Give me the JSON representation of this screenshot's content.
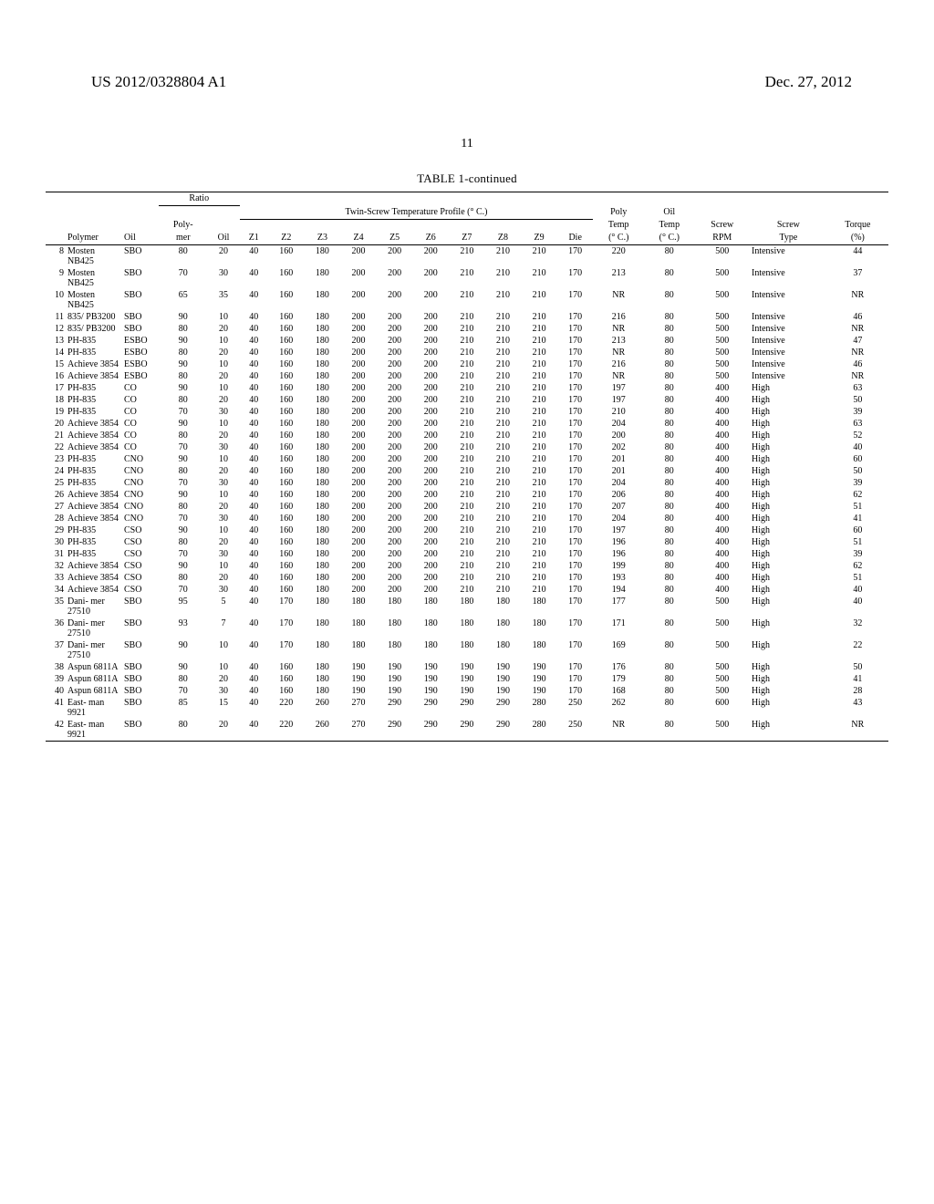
{
  "header": {
    "pub_number": "US 2012/0328804 A1",
    "pub_date": "Dec. 27, 2012",
    "page_number": "11"
  },
  "table": {
    "caption": "TABLE 1-continued",
    "groups": {
      "ratio": "Ratio",
      "temp_profile": "Twin-Screw Temperature Profile (° C.)"
    },
    "columns": [
      "",
      "Polymer",
      "Oil",
      "Poly-\nmer",
      "Oil",
      "Z1",
      "Z2",
      "Z3",
      "Z4",
      "Z5",
      "Z6",
      "Z7",
      "Z8",
      "Z9",
      "Die",
      "Poly\nTemp\n(° C.)",
      "Oil\nTemp\n(° C.)",
      "Screw\nRPM",
      "Screw\nType",
      "Torque\n(%)"
    ],
    "rows": [
      [
        "8",
        "Mosten NB425",
        "SBO",
        "80",
        "20",
        "40",
        "160",
        "180",
        "200",
        "200",
        "200",
        "210",
        "210",
        "210",
        "170",
        "220",
        "80",
        "500",
        "Intensive",
        "44"
      ],
      [
        "9",
        "Mosten NB425",
        "SBO",
        "70",
        "30",
        "40",
        "160",
        "180",
        "200",
        "200",
        "200",
        "210",
        "210",
        "210",
        "170",
        "213",
        "80",
        "500",
        "Intensive",
        "37"
      ],
      [
        "10",
        "Mosten NB425",
        "SBO",
        "65",
        "35",
        "40",
        "160",
        "180",
        "200",
        "200",
        "200",
        "210",
        "210",
        "210",
        "170",
        "NR",
        "80",
        "500",
        "Intensive",
        "NR"
      ],
      [
        "11",
        "835/ PB3200",
        "SBO",
        "90",
        "10",
        "40",
        "160",
        "180",
        "200",
        "200",
        "200",
        "210",
        "210",
        "210",
        "170",
        "216",
        "80",
        "500",
        "Intensive",
        "46"
      ],
      [
        "12",
        "835/ PB3200",
        "SBO",
        "80",
        "20",
        "40",
        "160",
        "180",
        "200",
        "200",
        "200",
        "210",
        "210",
        "210",
        "170",
        "NR",
        "80",
        "500",
        "Intensive",
        "NR"
      ],
      [
        "13",
        "PH-835",
        "ESBO",
        "90",
        "10",
        "40",
        "160",
        "180",
        "200",
        "200",
        "200",
        "210",
        "210",
        "210",
        "170",
        "213",
        "80",
        "500",
        "Intensive",
        "47"
      ],
      [
        "14",
        "PH-835",
        "ESBO",
        "80",
        "20",
        "40",
        "160",
        "180",
        "200",
        "200",
        "200",
        "210",
        "210",
        "210",
        "170",
        "NR",
        "80",
        "500",
        "Intensive",
        "NR"
      ],
      [
        "15",
        "Achieve 3854",
        "ESBO",
        "90",
        "10",
        "40",
        "160",
        "180",
        "200",
        "200",
        "200",
        "210",
        "210",
        "210",
        "170",
        "216",
        "80",
        "500",
        "Intensive",
        "46"
      ],
      [
        "16",
        "Achieve 3854",
        "ESBO",
        "80",
        "20",
        "40",
        "160",
        "180",
        "200",
        "200",
        "200",
        "210",
        "210",
        "210",
        "170",
        "NR",
        "80",
        "500",
        "Intensive",
        "NR"
      ],
      [
        "17",
        "PH-835",
        "CO",
        "90",
        "10",
        "40",
        "160",
        "180",
        "200",
        "200",
        "200",
        "210",
        "210",
        "210",
        "170",
        "197",
        "80",
        "400",
        "High",
        "63"
      ],
      [
        "18",
        "PH-835",
        "CO",
        "80",
        "20",
        "40",
        "160",
        "180",
        "200",
        "200",
        "200",
        "210",
        "210",
        "210",
        "170",
        "197",
        "80",
        "400",
        "High",
        "50"
      ],
      [
        "19",
        "PH-835",
        "CO",
        "70",
        "30",
        "40",
        "160",
        "180",
        "200",
        "200",
        "200",
        "210",
        "210",
        "210",
        "170",
        "210",
        "80",
        "400",
        "High",
        "39"
      ],
      [
        "20",
        "Achieve 3854",
        "CO",
        "90",
        "10",
        "40",
        "160",
        "180",
        "200",
        "200",
        "200",
        "210",
        "210",
        "210",
        "170",
        "204",
        "80",
        "400",
        "High",
        "63"
      ],
      [
        "21",
        "Achieve 3854",
        "CO",
        "80",
        "20",
        "40",
        "160",
        "180",
        "200",
        "200",
        "200",
        "210",
        "210",
        "210",
        "170",
        "200",
        "80",
        "400",
        "High",
        "52"
      ],
      [
        "22",
        "Achieve 3854",
        "CO",
        "70",
        "30",
        "40",
        "160",
        "180",
        "200",
        "200",
        "200",
        "210",
        "210",
        "210",
        "170",
        "202",
        "80",
        "400",
        "High",
        "40"
      ],
      [
        "23",
        "PH-835",
        "CNO",
        "90",
        "10",
        "40",
        "160",
        "180",
        "200",
        "200",
        "200",
        "210",
        "210",
        "210",
        "170",
        "201",
        "80",
        "400",
        "High",
        "60"
      ],
      [
        "24",
        "PH-835",
        "CNO",
        "80",
        "20",
        "40",
        "160",
        "180",
        "200",
        "200",
        "200",
        "210",
        "210",
        "210",
        "170",
        "201",
        "80",
        "400",
        "High",
        "50"
      ],
      [
        "25",
        "PH-835",
        "CNO",
        "70",
        "30",
        "40",
        "160",
        "180",
        "200",
        "200",
        "200",
        "210",
        "210",
        "210",
        "170",
        "204",
        "80",
        "400",
        "High",
        "39"
      ],
      [
        "26",
        "Achieve 3854",
        "CNO",
        "90",
        "10",
        "40",
        "160",
        "180",
        "200",
        "200",
        "200",
        "210",
        "210",
        "210",
        "170",
        "206",
        "80",
        "400",
        "High",
        "62"
      ],
      [
        "27",
        "Achieve 3854",
        "CNO",
        "80",
        "20",
        "40",
        "160",
        "180",
        "200",
        "200",
        "200",
        "210",
        "210",
        "210",
        "170",
        "207",
        "80",
        "400",
        "High",
        "51"
      ],
      [
        "28",
        "Achieve 3854",
        "CNO",
        "70",
        "30",
        "40",
        "160",
        "180",
        "200",
        "200",
        "200",
        "210",
        "210",
        "210",
        "170",
        "204",
        "80",
        "400",
        "High",
        "41"
      ],
      [
        "29",
        "PH-835",
        "CSO",
        "90",
        "10",
        "40",
        "160",
        "180",
        "200",
        "200",
        "200",
        "210",
        "210",
        "210",
        "170",
        "197",
        "80",
        "400",
        "High",
        "60"
      ],
      [
        "30",
        "PH-835",
        "CSO",
        "80",
        "20",
        "40",
        "160",
        "180",
        "200",
        "200",
        "200",
        "210",
        "210",
        "210",
        "170",
        "196",
        "80",
        "400",
        "High",
        "51"
      ],
      [
        "31",
        "PH-835",
        "CSO",
        "70",
        "30",
        "40",
        "160",
        "180",
        "200",
        "200",
        "200",
        "210",
        "210",
        "210",
        "170",
        "196",
        "80",
        "400",
        "High",
        "39"
      ],
      [
        "32",
        "Achieve 3854",
        "CSO",
        "90",
        "10",
        "40",
        "160",
        "180",
        "200",
        "200",
        "200",
        "210",
        "210",
        "210",
        "170",
        "199",
        "80",
        "400",
        "High",
        "62"
      ],
      [
        "33",
        "Achieve 3854",
        "CSO",
        "80",
        "20",
        "40",
        "160",
        "180",
        "200",
        "200",
        "200",
        "210",
        "210",
        "210",
        "170",
        "193",
        "80",
        "400",
        "High",
        "51"
      ],
      [
        "34",
        "Achieve 3854",
        "CSO",
        "70",
        "30",
        "40",
        "160",
        "180",
        "200",
        "200",
        "200",
        "210",
        "210",
        "210",
        "170",
        "194",
        "80",
        "400",
        "High",
        "40"
      ],
      [
        "35",
        "Dani- mer 27510",
        "SBO",
        "95",
        "5",
        "40",
        "170",
        "180",
        "180",
        "180",
        "180",
        "180",
        "180",
        "180",
        "170",
        "177",
        "80",
        "500",
        "High",
        "40"
      ],
      [
        "36",
        "Dani- mer 27510",
        "SBO",
        "93",
        "7",
        "40",
        "170",
        "180",
        "180",
        "180",
        "180",
        "180",
        "180",
        "180",
        "170",
        "171",
        "80",
        "500",
        "High",
        "32"
      ],
      [
        "37",
        "Dani- mer 27510",
        "SBO",
        "90",
        "10",
        "40",
        "170",
        "180",
        "180",
        "180",
        "180",
        "180",
        "180",
        "180",
        "170",
        "169",
        "80",
        "500",
        "High",
        "22"
      ],
      [
        "38",
        "Aspun 6811A",
        "SBO",
        "90",
        "10",
        "40",
        "160",
        "180",
        "190",
        "190",
        "190",
        "190",
        "190",
        "190",
        "170",
        "176",
        "80",
        "500",
        "High",
        "50"
      ],
      [
        "39",
        "Aspun 6811A",
        "SBO",
        "80",
        "20",
        "40",
        "160",
        "180",
        "190",
        "190",
        "190",
        "190",
        "190",
        "190",
        "170",
        "179",
        "80",
        "500",
        "High",
        "41"
      ],
      [
        "40",
        "Aspun 6811A",
        "SBO",
        "70",
        "30",
        "40",
        "160",
        "180",
        "190",
        "190",
        "190",
        "190",
        "190",
        "190",
        "170",
        "168",
        "80",
        "500",
        "High",
        "28"
      ],
      [
        "41",
        "East- man 9921",
        "SBO",
        "85",
        "15",
        "40",
        "220",
        "260",
        "270",
        "290",
        "290",
        "290",
        "290",
        "280",
        "250",
        "262",
        "80",
        "600",
        "High",
        "43"
      ],
      [
        "42",
        "East- man 9921",
        "SBO",
        "80",
        "20",
        "40",
        "220",
        "260",
        "270",
        "290",
        "290",
        "290",
        "290",
        "280",
        "250",
        "NR",
        "80",
        "500",
        "High",
        "NR"
      ]
    ]
  }
}
